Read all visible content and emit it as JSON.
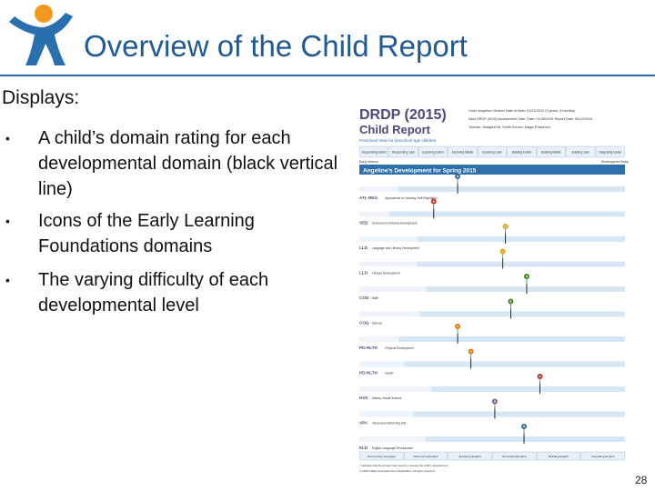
{
  "slide": {
    "title": "Overview of the Child Report",
    "intro": "Displays:",
    "bullets": [
      "A child’s domain rating for each developmental domain (black vertical line)",
      "Icons of the Early Learning Foundations domains",
      "The varying difficulty of each developmental level"
    ],
    "page_number": "28"
  },
  "report": {
    "brand": "DRDP (2015)",
    "subtitle": "Child Report",
    "tagline": "Preschool View for preschool-age children",
    "header_info": [
      "Child:  Angeline Chotner    Date of Birth:  01/12/2012  (3 years, 3 months)",
      "Next DRDP (2015) Assessment Date:   Date:  01/26/2015    Report Date:  05/12/2015",
      "Teacher:  Margaret M. Smith     School:  Magic Preschool"
    ],
    "levels": [
      "Responding Earlier",
      "Responding Later",
      "Exploring Earlier",
      "Exploring Middle",
      "Exploring Later",
      "Building Earlier",
      "Building Middle",
      "Building Later",
      "Integrating Earlier"
    ],
    "axis_left": "Early Infancy",
    "axis_right": "Kindergarten Entry",
    "banner": "Angeline’s Development for Spring 2015",
    "domains": [
      {
        "code": "ATL-REG",
        "name": "Approaches to Learning–Self-Regulation",
        "rating": 0.37
      },
      {
        "code": "SED",
        "name": "Social and Emotional Development",
        "rating": 0.28
      },
      {
        "code": "LLD",
        "name": "Language and Literacy Development",
        "rating": 0.55
      },
      {
        "code": "LLD",
        "name": "Literacy Development",
        "rating": 0.54
      },
      {
        "code": "COG",
        "name": "Math",
        "rating": 0.63
      },
      {
        "code": "COG",
        "name": "Science",
        "rating": 0.57
      },
      {
        "code": "PD-HLTH",
        "name": "Physical Development",
        "rating": 0.37
      },
      {
        "code": "PD-HLTH",
        "name": "Health",
        "rating": 0.42
      },
      {
        "code": "HSS",
        "name": "History–Social Science",
        "rating": 0.68
      },
      {
        "code": "VPA",
        "name": "Visual and Performing Arts",
        "rating": 0.51
      },
      {
        "code": "ELD",
        "name": "English-Language Development",
        "rating": 0.62
      }
    ],
    "eld_levels": [
      "Discovering Language",
      "Discovering English",
      "Exploring English",
      "Developing English",
      "Building English",
      "Integrating English"
    ],
    "footnote_1": "* Indicates that the domain was rated to measure the child's development.",
    "footnote_2": "© 2015 California Department of Education. All rights reserved.",
    "colors": {
      "brand": "#4a4a7c",
      "banner": "#2f6fab",
      "band": "#d7e6f3",
      "rating_line": "#111111"
    }
  }
}
